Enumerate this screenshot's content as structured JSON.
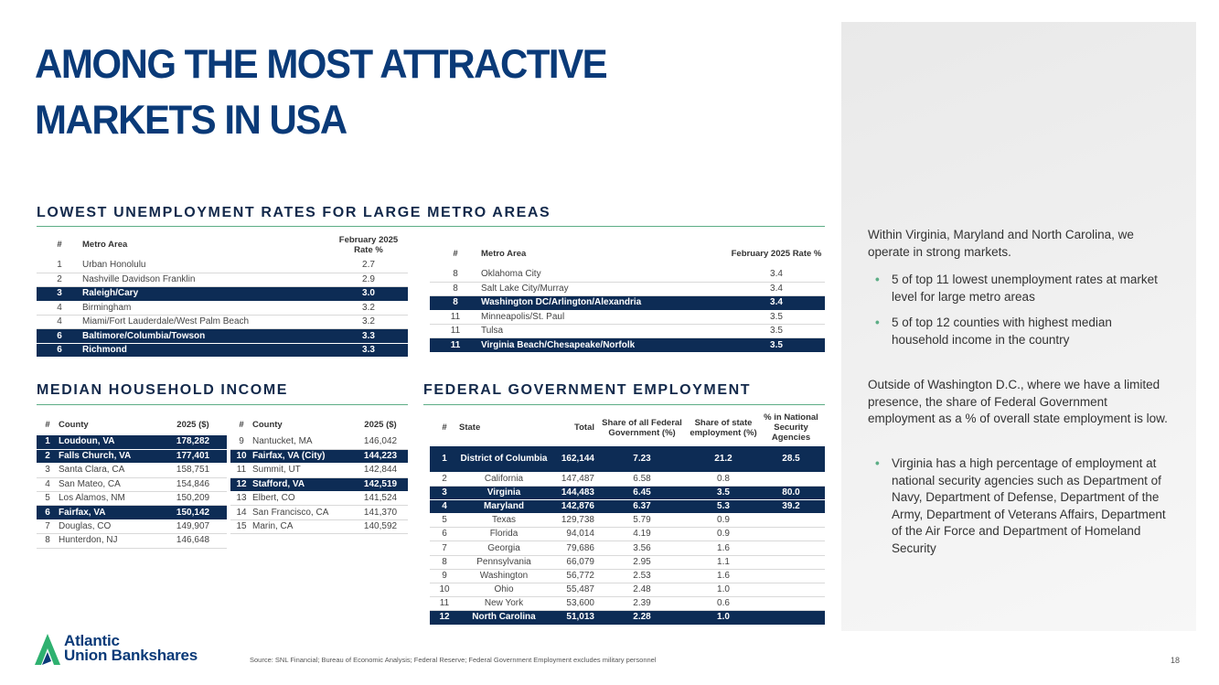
{
  "title": {
    "line1": "AMONG THE MOST ATTRACTIVE",
    "line2": "MARKETS IN USA"
  },
  "unemployment": {
    "heading": "LOWEST UNEMPLOYMENT RATES FOR LARGE METRO AREAS",
    "headers": {
      "rank": "#",
      "metro": "Metro Area",
      "rate": "February 2025 Rate %"
    },
    "left_rows": [
      {
        "rank": "1",
        "metro": "Urban Honolulu",
        "rate": "2.7",
        "hl": false
      },
      {
        "rank": "2",
        "metro": "Nashville Davidson Franklin",
        "rate": "2.9",
        "hl": false
      },
      {
        "rank": "3",
        "metro": "Raleigh/Cary",
        "rate": "3.0",
        "hl": true
      },
      {
        "rank": "4",
        "metro": "Birmingham",
        "rate": "3.2",
        "hl": false
      },
      {
        "rank": "4",
        "metro": "Miami/Fort Lauderdale/West Palm Beach",
        "rate": "3.2",
        "hl": false
      },
      {
        "rank": "6",
        "metro": "Baltimore/Columbia/Towson",
        "rate": "3.3",
        "hl": true
      },
      {
        "rank": "6",
        "metro": "Richmond",
        "rate": "3.3",
        "hl": true
      }
    ],
    "right_rows": [
      {
        "rank": "8",
        "metro": "Oklahoma City",
        "rate": "3.4",
        "hl": false
      },
      {
        "rank": "8",
        "metro": "Salt Lake City/Murray",
        "rate": "3.4",
        "hl": false
      },
      {
        "rank": "8",
        "metro": "Washington DC/Arlington/Alexandria",
        "rate": "3.4",
        "hl": true
      },
      {
        "rank": "11",
        "metro": "Minneapolis/St. Paul",
        "rate": "3.5",
        "hl": false
      },
      {
        "rank": "11",
        "metro": "Tulsa",
        "rate": "3.5",
        "hl": false
      },
      {
        "rank": "11",
        "metro": "Virginia Beach/Chesapeake/Norfolk",
        "rate": "3.5",
        "hl": true
      }
    ]
  },
  "income": {
    "heading": "MEDIAN HOUSEHOLD INCOME",
    "headers": {
      "rank": "#",
      "county": "County",
      "value": "2025 ($)"
    },
    "left_rows": [
      {
        "rank": "1",
        "county": "Loudoun, VA",
        "value": "178,282",
        "hl": true
      },
      {
        "rank": "2",
        "county": "Falls Church, VA",
        "value": "177,401",
        "hl": true
      },
      {
        "rank": "3",
        "county": "Santa Clara, CA",
        "value": "158,751",
        "hl": false
      },
      {
        "rank": "4",
        "county": "San Mateo, CA",
        "value": "154,846",
        "hl": false
      },
      {
        "rank": "5",
        "county": "Los Alamos, NM",
        "value": "150,209",
        "hl": false
      },
      {
        "rank": "6",
        "county": "Fairfax, VA",
        "value": "150,142",
        "hl": true
      },
      {
        "rank": "7",
        "county": "Douglas, CO",
        "value": "149,907",
        "hl": false
      },
      {
        "rank": "8",
        "county": "Hunterdon, NJ",
        "value": "146,648",
        "hl": false
      }
    ],
    "right_rows": [
      {
        "rank": "9",
        "county": "Nantucket, MA",
        "value": "146,042",
        "hl": false
      },
      {
        "rank": "10",
        "county": "Fairfax, VA (City)",
        "value": "144,223",
        "hl": true
      },
      {
        "rank": "11",
        "county": "Summit, UT",
        "value": "142,844",
        "hl": false
      },
      {
        "rank": "12",
        "county": "Stafford, VA",
        "value": "142,519",
        "hl": true
      },
      {
        "rank": "13",
        "county": "Elbert, CO",
        "value": "141,524",
        "hl": false
      },
      {
        "rank": "14",
        "county": "San Francisco, CA",
        "value": "141,370",
        "hl": false
      },
      {
        "rank": "15",
        "county": "Marin, CA",
        "value": "140,592",
        "hl": false
      }
    ]
  },
  "federal": {
    "heading": "FEDERAL GOVERNMENT EMPLOYMENT",
    "headers": {
      "rank": "#",
      "state": "State",
      "total": "Total",
      "share_fed": "Share of all Federal Government (%)",
      "share_state": "Share of state employment (%)",
      "national": "% in National Security Agencies"
    },
    "rows": [
      {
        "rank": "1",
        "state": "District of Columbia",
        "total": "162,144",
        "share_fed": "7.23",
        "share_state": "21.2",
        "national": "28.5",
        "hl": true
      },
      {
        "rank": "2",
        "state": "California",
        "total": "147,487",
        "share_fed": "6.58",
        "share_state": "0.8",
        "national": "",
        "hl": false
      },
      {
        "rank": "3",
        "state": "Virginia",
        "total": "144,483",
        "share_fed": "6.45",
        "share_state": "3.5",
        "national": "80.0",
        "hl": true
      },
      {
        "rank": "4",
        "state": "Maryland",
        "total": "142,876",
        "share_fed": "6.37",
        "share_state": "5.3",
        "national": "39.2",
        "hl": true
      },
      {
        "rank": "5",
        "state": "Texas",
        "total": "129,738",
        "share_fed": "5.79",
        "share_state": "0.9",
        "national": "",
        "hl": false
      },
      {
        "rank": "6",
        "state": "Florida",
        "total": "94,014",
        "share_fed": "4.19",
        "share_state": "0.9",
        "national": "",
        "hl": false
      },
      {
        "rank": "7",
        "state": "Georgia",
        "total": "79,686",
        "share_fed": "3.56",
        "share_state": "1.6",
        "national": "",
        "hl": false
      },
      {
        "rank": "8",
        "state": "Pennsylvania",
        "total": "66,079",
        "share_fed": "2.95",
        "share_state": "1.1",
        "national": "",
        "hl": false
      },
      {
        "rank": "9",
        "state": "Washington",
        "total": "56,772",
        "share_fed": "2.53",
        "share_state": "1.6",
        "national": "",
        "hl": false
      },
      {
        "rank": "10",
        "state": "Ohio",
        "total": "55,487",
        "share_fed": "2.48",
        "share_state": "1.0",
        "national": "",
        "hl": false
      },
      {
        "rank": "11",
        "state": "New York",
        "total": "53,600",
        "share_fed": "2.39",
        "share_state": "0.6",
        "national": "",
        "hl": false
      },
      {
        "rank": "12",
        "state": "North Carolina",
        "total": "51,013",
        "share_fed": "2.28",
        "share_state": "1.0",
        "national": "",
        "hl": true
      }
    ]
  },
  "panel": {
    "intro": "Within Virginia, Maryland and North Carolina, we operate in strong markets.",
    "bullets1": [
      "5 of top 11 lowest unemployment rates at market level for large metro areas",
      "5 of top 12 counties with highest median household income in the country"
    ],
    "para2": "Outside of Washington D.C., where we have a limited presence, the share of Federal Government employment as a % of overall state employment is low.",
    "bullets2": [
      "Virginia has a high percentage of employment at national security agencies such as Department of Navy, Department of Defense, Department of the Army, Department of Veterans Affairs, Department of the Air Force and Department of Homeland Security"
    ],
    "bullet_glyph": "•"
  },
  "footer": {
    "logo_line1": "Atlantic",
    "logo_line2": "Union Bankshares",
    "source": "Source: SNL Financial; Bureau of Economic Analysis; Federal Reserve; Federal Government Employment excludes military personnel",
    "page": "18"
  },
  "colors": {
    "navy": "#0d2c55",
    "title_blue": "#0a3a78",
    "accent_green": "#5dae86",
    "logo_green": "#2fb170"
  }
}
